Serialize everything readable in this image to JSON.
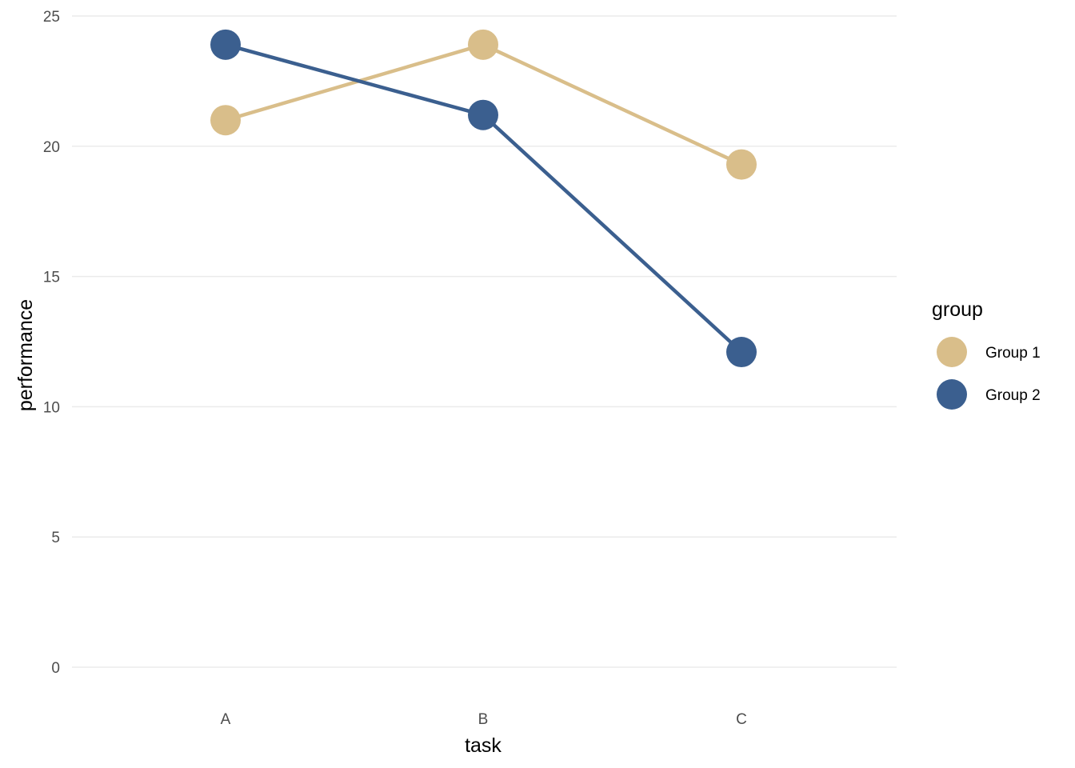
{
  "chart_data": {
    "type": "line",
    "categories": [
      "A",
      "B",
      "C"
    ],
    "series": [
      {
        "name": "Group 1",
        "values": [
          21.0,
          23.9,
          19.3
        ],
        "color": "#d9be8a"
      },
      {
        "name": "Group 2",
        "values": [
          23.9,
          21.2,
          12.1
        ],
        "color": "#3b5f8f"
      }
    ],
    "xlabel": "task",
    "ylabel": "performance",
    "ylim": [
      0,
      25
    ],
    "yticks": [
      0,
      5,
      10,
      15,
      20,
      25
    ],
    "grid": "horizontal",
    "legend": {
      "title": "group",
      "placement": "right"
    }
  }
}
